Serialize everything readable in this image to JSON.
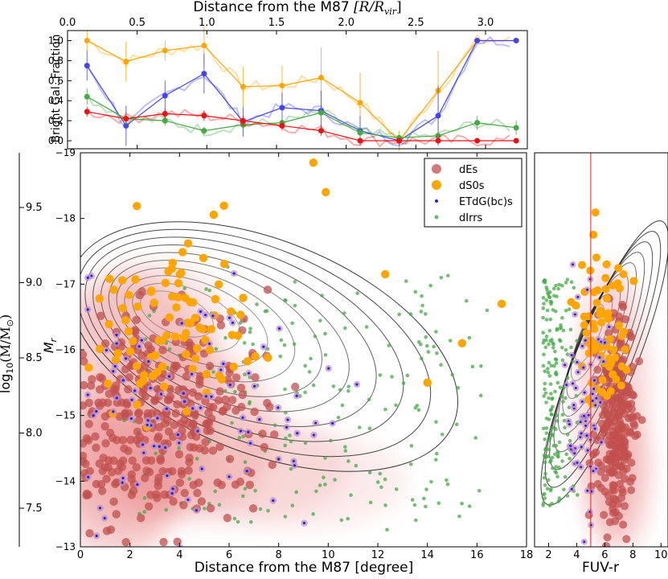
{
  "chart_data": [
    {
      "id": "top",
      "type": "line",
      "x_axis_title": "Distance from the M87",
      "x_axis_unit": "[R/R",
      "x_axis_unit_sub": "vir",
      "x_axis_unit_end": "]",
      "ylabel": "Bright Gal. Fraction",
      "xlim": [
        0,
        3.3
      ],
      "ylim": [
        -0.08,
        1.1
      ],
      "xticks": [
        "0.0",
        "0.5",
        "1.0",
        "1.5",
        "2.0",
        "2.5",
        "3.0"
      ],
      "yticks": [
        "0.0",
        "0.2",
        "0.4",
        "0.6",
        "0.8",
        "1.0"
      ],
      "series": [
        {
          "color": "#ffa500",
          "x": [
            0.14,
            0.42,
            0.7,
            0.98,
            1.26,
            1.54,
            1.82,
            2.1,
            2.38,
            2.66,
            2.94,
            3.22
          ],
          "y": [
            1.0,
            0.79,
            0.9,
            0.95,
            0.54,
            0.55,
            0.63,
            0.38,
            0.0,
            0.5,
            1.0,
            1.0
          ],
          "err": [
            0.1,
            0.2,
            0.1,
            0.2,
            0.2,
            0.2,
            0.3,
            0.3,
            0.1,
            0.4,
            0.0,
            0.0
          ]
        },
        {
          "color": "#4444ee",
          "x": [
            0.14,
            0.42,
            0.7,
            0.98,
            1.26,
            1.54,
            1.82,
            2.1,
            2.38,
            2.66,
            2.94,
            3.22
          ],
          "y": [
            0.75,
            0.15,
            0.45,
            0.67,
            0.19,
            0.33,
            0.3,
            0.1,
            0.0,
            0.25,
            1.0,
            1.0
          ],
          "err": [
            0.15,
            0.2,
            0.15,
            0.2,
            0.15,
            0.15,
            0.2,
            0.15,
            0.05,
            0.3,
            0.0,
            0.0
          ]
        },
        {
          "color": "#44aa44",
          "x": [
            0.14,
            0.42,
            0.7,
            0.98,
            1.26,
            1.54,
            1.82,
            2.1,
            2.38,
            2.66,
            2.94,
            3.22
          ],
          "y": [
            0.44,
            0.22,
            0.2,
            0.1,
            0.16,
            0.18,
            0.28,
            0.08,
            0.03,
            0.05,
            0.18,
            0.13
          ],
          "err": [
            0.08,
            0.05,
            0.05,
            0.04,
            0.05,
            0.05,
            0.07,
            0.05,
            0.03,
            0.04,
            0.07,
            0.07
          ]
        },
        {
          "color": "#ee1111",
          "x": [
            0.14,
            0.42,
            0.7,
            0.98,
            1.26,
            1.54,
            1.82,
            2.1,
            2.38,
            2.66,
            2.94,
            3.22
          ],
          "y": [
            0.29,
            0.22,
            0.27,
            0.25,
            0.2,
            0.15,
            0.1,
            0.0,
            0.0,
            0.0,
            0.0,
            0.0
          ],
          "err": [
            0.05,
            0.04,
            0.05,
            0.05,
            0.05,
            0.05,
            0.05,
            0.02,
            0.02,
            0.02,
            0.0,
            0.0
          ]
        }
      ]
    },
    {
      "id": "main",
      "type": "scatter",
      "xlabel": "Distance from the M87 [degree]",
      "ylabel": "M",
      "ylabel_sub": "r",
      "left_axis_label": "log",
      "left_axis_label_sub": "10",
      "left_axis_label_end": "(M/M",
      "left_axis_label_sun": "⊙",
      "left_axis_label_close": ")",
      "xlim": [
        0,
        18
      ],
      "ylim": [
        -13,
        -19
      ],
      "xticks": [
        "0",
        "2",
        "4",
        "6",
        "8",
        "10",
        "12",
        "14",
        "16",
        "18"
      ],
      "yticks": [
        "−13",
        "−14",
        "−15",
        "−16",
        "−17",
        "−18",
        "−19"
      ],
      "mass_ticks": [
        "7.5",
        "8.0",
        "8.5",
        "9.0",
        "9.5"
      ],
      "legend": [
        {
          "label": "dEs",
          "color": "#c0504d"
        },
        {
          "label": "dS0s",
          "color": "#ffa500"
        },
        {
          "label": "ETdG(bc)s",
          "color": "#2222ee"
        },
        {
          "label": "dIrrs",
          "color": "#44aa44"
        }
      ],
      "legend_position": "top-right"
    },
    {
      "id": "right",
      "type": "scatter",
      "xlabel": "FUV-r",
      "xlim": [
        1,
        10.5
      ],
      "ylim": [
        -13,
        -19
      ],
      "xticks": [
        "2",
        "4",
        "6",
        "8",
        "10"
      ],
      "vline": 5,
      "vline_color": "#dd2222"
    }
  ],
  "notes": {
    "density_color": "#e88080",
    "contour_color": "#222222"
  }
}
